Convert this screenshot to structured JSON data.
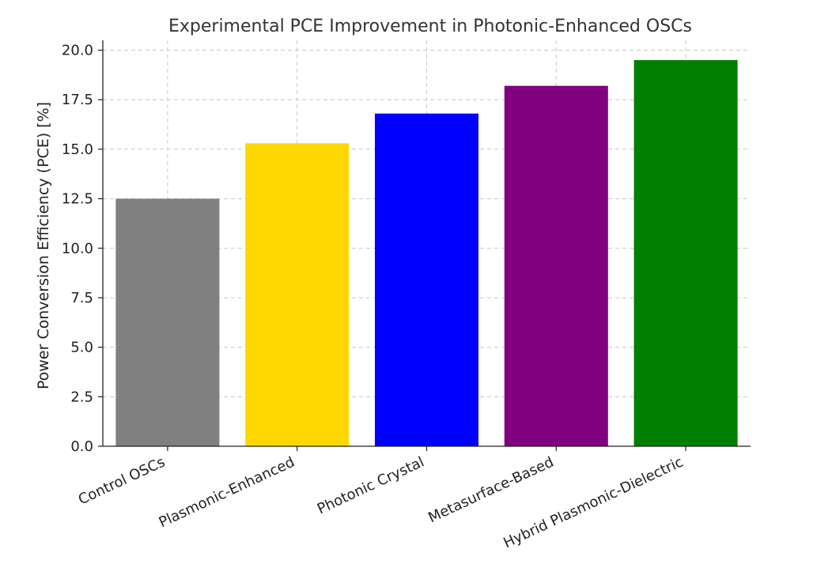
{
  "chart_data": {
    "type": "bar",
    "title": "Experimental PCE Improvement in Photonic-Enhanced OSCs",
    "xlabel": "",
    "ylabel": "Power Conversion Efficiency (PCE) [%]",
    "categories": [
      "Control OSCs",
      "Plasmonic-Enhanced",
      "Photonic Crystal",
      "Metasurface-Based",
      "Hybrid Plasmonic-Dielectric"
    ],
    "values": [
      12.5,
      15.3,
      16.8,
      18.2,
      19.5
    ],
    "colors": [
      "#808080",
      "#ffd700",
      "#0000ff",
      "#800080",
      "#008000"
    ],
    "ylim": [
      0,
      20.5
    ],
    "yticks": [
      0.0,
      2.5,
      5.0,
      7.5,
      10.0,
      12.5,
      15.0,
      17.5,
      20.0
    ],
    "ytick_labels": [
      "0.0",
      "2.5",
      "5.0",
      "7.5",
      "10.0",
      "12.5",
      "15.0",
      "17.5",
      "20.0"
    ],
    "grid": true,
    "xtick_rotation": -25
  }
}
